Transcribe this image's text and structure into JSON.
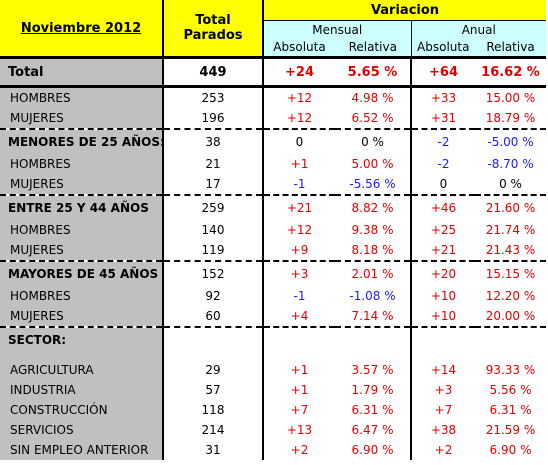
{
  "header": {
    "title": "Noviembre 2012",
    "total_label": "Total Parados",
    "variation_label": "Variacion",
    "mensual_label": "Mensual",
    "anual_label": "Anual",
    "absoluta_label": "Absoluta",
    "relativa_label": "Relativa"
  },
  "rows": {
    "total": {
      "label": "Total",
      "total": "449",
      "m_abs": "+24",
      "m_rel": "5.65 %",
      "a_abs": "+64",
      "a_rel": "16.62 %"
    },
    "total_hombres": {
      "label": "HOMBRES",
      "total": "253",
      "m_abs": "+12",
      "m_rel": "4.98 %",
      "a_abs": "+33",
      "a_rel": "15.00 %"
    },
    "total_mujeres": {
      "label": "MUJERES",
      "total": "196",
      "m_abs": "+12",
      "m_rel": "6.52 %",
      "a_abs": "+31",
      "a_rel": "18.79 %"
    },
    "menores": {
      "label": "MENORES DE 25 AÑOS:",
      "total": "38",
      "m_abs": "0",
      "m_rel": "0 %",
      "a_abs": "-2",
      "a_rel": "-5.00 %"
    },
    "menores_hombres": {
      "label": "HOMBRES",
      "total": "21",
      "m_abs": "+1",
      "m_rel": "5.00 %",
      "a_abs": "-2",
      "a_rel": "-8.70 %"
    },
    "menores_mujeres": {
      "label": "MUJERES",
      "total": "17",
      "m_abs": "-1",
      "m_rel": "-5.56 %",
      "a_abs": "0",
      "a_rel": "0 %"
    },
    "entre": {
      "label": "ENTRE 25 Y 44 AÑOS",
      "total": "259",
      "m_abs": "+21",
      "m_rel": "8.82 %",
      "a_abs": "+46",
      "a_rel": "21.60 %"
    },
    "entre_hombres": {
      "label": "HOMBRES",
      "total": "140",
      "m_abs": "+12",
      "m_rel": "9.38 %",
      "a_abs": "+25",
      "a_rel": "21.74 %"
    },
    "entre_mujeres": {
      "label": "MUJERES",
      "total": "119",
      "m_abs": "+9",
      "m_rel": "8.18 %",
      "a_abs": "+21",
      "a_rel": "21.43 %"
    },
    "mayores": {
      "label": "MAYORES DE 45 AÑOS",
      "total": "152",
      "m_abs": "+3",
      "m_rel": "2.01 %",
      "a_abs": "+20",
      "a_rel": "15.15 %"
    },
    "mayores_hombres": {
      "label": "HOMBRES",
      "total": "92",
      "m_abs": "-1",
      "m_rel": "-1.08 %",
      "a_abs": "+10",
      "a_rel": "12.20 %"
    },
    "mayores_mujeres": {
      "label": "MUJERES",
      "total": "60",
      "m_abs": "+4",
      "m_rel": "7.14 %",
      "a_abs": "+10",
      "a_rel": "20.00 %"
    },
    "sector": {
      "label": "SECTOR:"
    },
    "agricultura": {
      "label": "AGRICULTURA",
      "total": "29",
      "m_abs": "+1",
      "m_rel": "3.57 %",
      "a_abs": "+14",
      "a_rel": "93.33 %"
    },
    "industria": {
      "label": "INDUSTRIA",
      "total": "57",
      "m_abs": "+1",
      "m_rel": "1.79 %",
      "a_abs": "+3",
      "a_rel": "5.56 %"
    },
    "construccion": {
      "label": "CONSTRUCCIÓN",
      "total": "118",
      "m_abs": "+7",
      "m_rel": "6.31 %",
      "a_abs": "+7",
      "a_rel": "6.31 %"
    },
    "servicios": {
      "label": "SERVICIOS",
      "total": "214",
      "m_abs": "+13",
      "m_rel": "6.47 %",
      "a_abs": "+38",
      "a_rel": "21.59 %"
    },
    "sin_empleo": {
      "label": "SIN EMPLEO ANTERIOR",
      "total": "31",
      "m_abs": "+2",
      "m_rel": "6.90 %",
      "a_abs": "+2",
      "a_rel": "6.90 %"
    }
  },
  "colors": {
    "header_yellow": "#ffff00",
    "subheader_cyan": "#ccffff",
    "label_gray": "#c0c0c0",
    "positive_red": "#e00000",
    "negative_blue": "#1a1aff"
  }
}
